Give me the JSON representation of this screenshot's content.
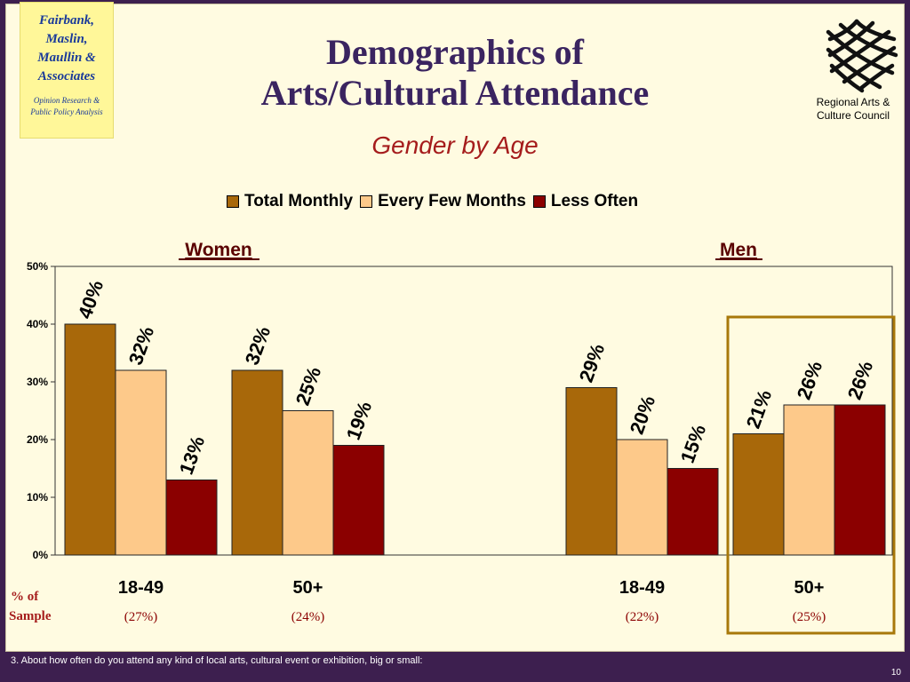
{
  "logo_left": {
    "name": "Fairbank,\nMaslin,\nMaullin &\nAssociates",
    "tagline": "Opinion Research &\nPublic Policy Analysis"
  },
  "logo_right": {
    "text": "Regional Arts &\nCulture Council",
    "icon": "woven-lattice-logo-icon"
  },
  "title": "Demographics of\nArts/Cultural Attendance",
  "subtitle": "Gender by Age",
  "footnote": "3. About how often do you attend any kind of local arts, cultural event or exhibition, big or small:",
  "page_number": "10",
  "sample_label": {
    "line1": "% of",
    "line2": "Sample"
  },
  "colors": {
    "total_monthly": "#a8680a",
    "every_few_months": "#fdc98a",
    "less_often": "#8b0000",
    "highlight_box": "#a8780a",
    "background": "#fffbe1",
    "frame": "#3d1f4f"
  },
  "chart_data": {
    "type": "bar",
    "groups": [
      "Women",
      "Men"
    ],
    "categories": [
      "18-49",
      "50+",
      "18-49",
      "50+"
    ],
    "category_groups": [
      "Women",
      "Women",
      "Men",
      "Men"
    ],
    "sample_shares": [
      "(27%)",
      "(24%)",
      "(22%)",
      "(25%)"
    ],
    "series": [
      {
        "name": "Total Monthly",
        "values": [
          40,
          32,
          29,
          21
        ],
        "labels": [
          "40%",
          "32%",
          "29%",
          "21%"
        ]
      },
      {
        "name": "Every Few Months",
        "values": [
          32,
          25,
          20,
          26
        ],
        "labels": [
          "32%",
          "25%",
          "20%",
          "26%"
        ]
      },
      {
        "name": "Less Often",
        "values": [
          13,
          19,
          15,
          26
        ],
        "labels": [
          "13%",
          "19%",
          "15%",
          "26%"
        ]
      }
    ],
    "y_ticks": [
      "0%",
      "10%",
      "20%",
      "30%",
      "40%",
      "50%"
    ],
    "ylim": [
      0,
      50
    ],
    "grid": false,
    "legend_position": "top",
    "highlighted_category": "Men 50+"
  }
}
